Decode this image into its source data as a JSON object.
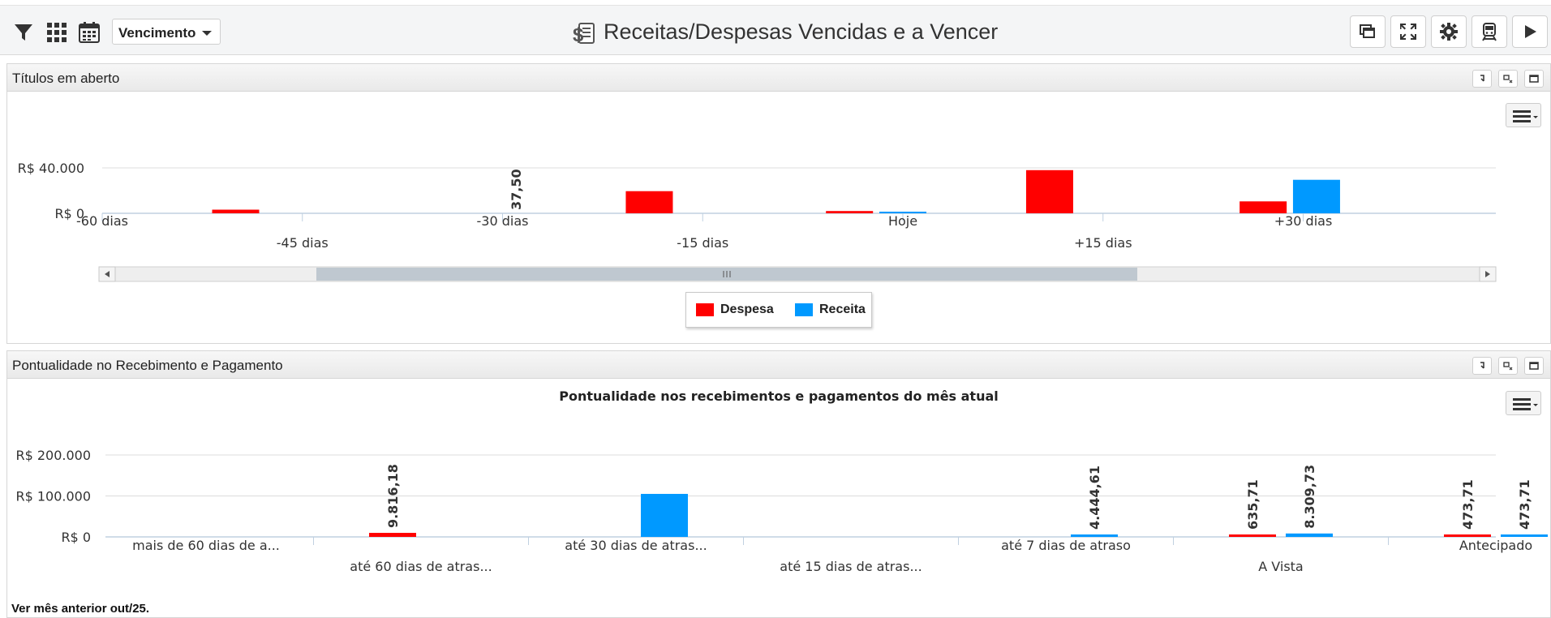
{
  "toolbar": {
    "dropdown_value": "Vencimento",
    "title": "Receitas/Despesas Vencidas e a Vencer",
    "icons": [
      "filter-icon",
      "grid-icon",
      "calendar-icon",
      "copy-window-icon",
      "fullscreen-icon",
      "gear-icon",
      "train-icon",
      "play-icon"
    ]
  },
  "panel1": {
    "title": "Títulos em aberto"
  },
  "panel2": {
    "title": "Pontualidade no Recebimento e Pagamento",
    "chart_title": "Pontualidade nos recebimentos e pagamentos do mês atual"
  },
  "footer": {
    "text": "Ver mês anterior out/25."
  },
  "colors": {
    "despesa": "#ff0000",
    "receita": "#0099ff"
  },
  "chart_data": [
    {
      "type": "bar",
      "yticks": [
        "R$ 0",
        "R$ 40.000"
      ],
      "ylim": [
        0,
        40000
      ],
      "x_labels_upper": [
        "-60 dias",
        "-30 dias",
        "Hoje",
        "+30 dias"
      ],
      "x_labels_lower": [
        "-45 dias",
        "-15 dias",
        "+15 dias"
      ],
      "series": [
        {
          "name": "Despesa",
          "points": [
            {
              "day": -50,
              "value": 3200
            },
            {
              "day": -19,
              "value": 19500
            },
            {
              "day": -4,
              "value": 2000
            },
            {
              "day": 11,
              "value": 38000
            },
            {
              "day": 27,
              "value": 10500
            }
          ]
        },
        {
          "name": "Receita",
          "points": [
            {
              "day": 0,
              "value": 1200
            },
            {
              "day": 31,
              "value": 29500
            }
          ]
        }
      ],
      "data_labels": [
        {
          "day": -29,
          "text": "37,50"
        }
      ],
      "legend": [
        "Despesa",
        "Receita"
      ],
      "legend_position": "bottom-center",
      "grid": true
    },
    {
      "type": "bar",
      "title": "Pontualidade nos recebimentos e pagamentos do mês atual",
      "yticks": [
        "R$ 0",
        "R$ 100.000",
        "R$ 200.000"
      ],
      "ylim": [
        0,
        200000
      ],
      "categories_upper": [
        "mais de 60 dias de a...",
        "até 30 dias de atras...",
        "até 7 dias de atraso",
        "Antecipado"
      ],
      "categories_lower": [
        "até 60 dias de atras...",
        "até 15 dias de atras...",
        "A Vista"
      ],
      "categories": [
        "mais de 60 dias de a...",
        "até 60 dias de atras...",
        "até 30 dias de atras...",
        "até 15 dias de atras...",
        "até 7 dias de atraso",
        "A Vista",
        "Antecipado"
      ],
      "series": [
        {
          "name": "Despesa",
          "values": [
            0,
            9816.18,
            0,
            0,
            0,
            635.71,
            473.71
          ]
        },
        {
          "name": "Receita",
          "values": [
            0,
            0,
            105000,
            0,
            4444.61,
            8309.73,
            473.71
          ]
        }
      ],
      "data_labels": [
        "9.816,18",
        "4.444,61",
        "635,71",
        "8.309,73",
        "473,71",
        "473,71"
      ],
      "grid": true
    }
  ]
}
